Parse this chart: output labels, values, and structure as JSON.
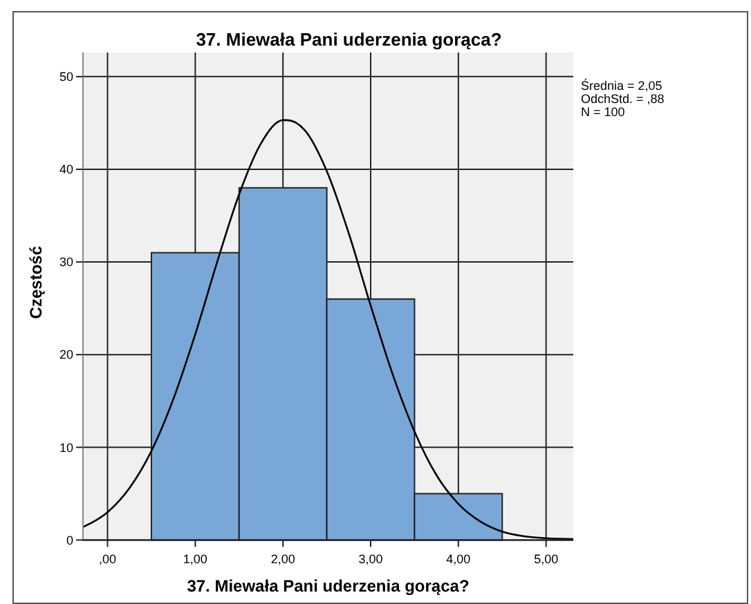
{
  "chart_data": {
    "type": "histogram",
    "title": "37. Miewała Pani uderzenia gorąca?",
    "xlabel": "37. Miewała Pani uderzenia gorąca?",
    "ylabel": "Częstość",
    "bins": [
      0.5,
      1.5,
      2.5,
      3.5,
      4.5
    ],
    "values": [
      31,
      38,
      26,
      5
    ],
    "color": "#79a8d8",
    "series": [
      {
        "type": "line",
        "color": "#000000",
        "x": [
          -0.28,
          0,
          0.25,
          0.5,
          0.75,
          1,
          1.25,
          1.5,
          1.75,
          2,
          2.05,
          2.25,
          2.5,
          2.75,
          3,
          3.25,
          3.5,
          3.75,
          4,
          4.25,
          4.5,
          4.75,
          5,
          5.31
        ],
        "values": [
          1.4,
          3.0,
          5.6,
          9.6,
          15.2,
          22.2,
          30.0,
          37.3,
          42.8,
          45.3,
          45.3,
          44.2,
          39.8,
          33.1,
          25.3,
          17.9,
          11.7,
          7.0,
          3.9,
          2.0,
          0.9,
          0.4,
          0.2,
          0.1
        ]
      }
    ],
    "xlim": [
      -0.28,
      5.31
    ],
    "ylim": [
      0,
      52.6
    ],
    "xticks": [
      {
        "value": 0,
        "label": ",00"
      },
      {
        "value": 1,
        "label": "1,00"
      },
      {
        "value": 2,
        "label": "2,00"
      },
      {
        "value": 3,
        "label": "3,00"
      },
      {
        "value": 4,
        "label": "4,00"
      },
      {
        "value": 5,
        "label": "5,00"
      }
    ],
    "yticks": [
      0,
      10,
      20,
      30,
      40,
      50
    ],
    "grid": true,
    "annotations": [
      "Średnia = 2,05",
      "OdchStd. = ,88",
      "N = 100"
    ]
  }
}
